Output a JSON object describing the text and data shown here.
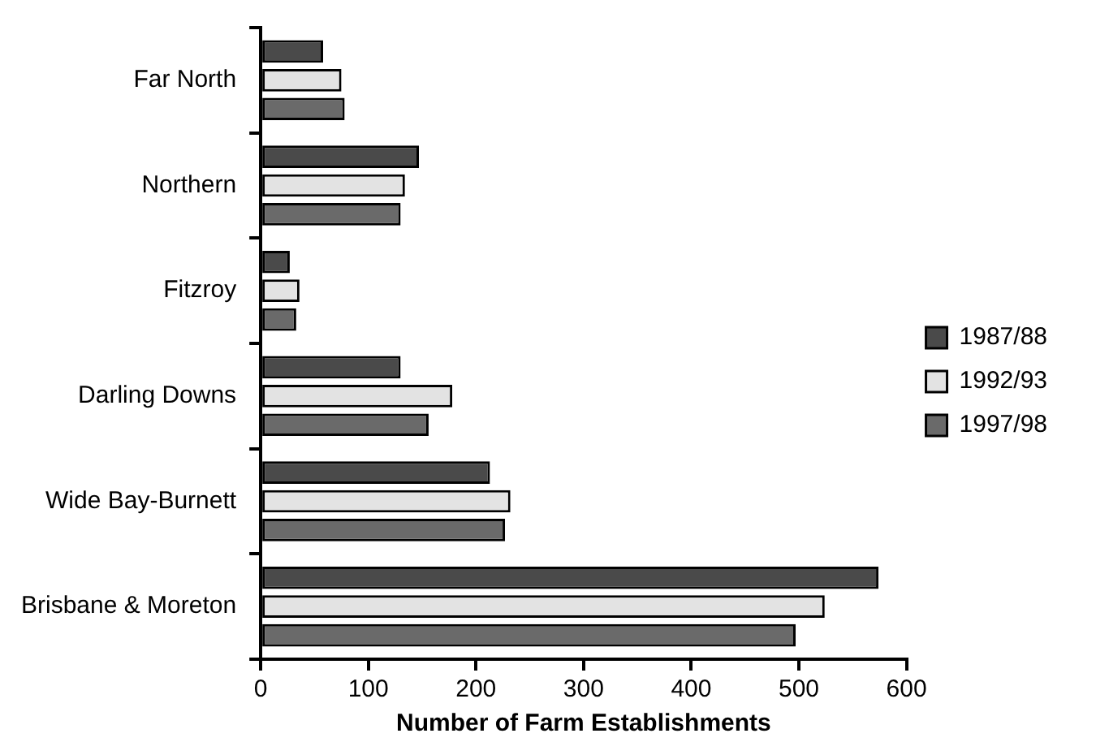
{
  "chart_data": {
    "type": "bar",
    "orientation": "horizontal",
    "xlabel": "Number of Farm Establishments",
    "categories": [
      "Far North",
      "Northern",
      "Fitzroy",
      "Darling Downs",
      "Wide Bay-Burnett",
      "Brisbane & Moreton"
    ],
    "series": [
      {
        "name": "1987/88",
        "color": "#4a4a4a",
        "values": [
          58,
          147,
          27,
          130,
          213,
          574
        ]
      },
      {
        "name": "1992/93",
        "color": "#e3e3e3",
        "values": [
          75,
          134,
          36,
          178,
          232,
          524
        ]
      },
      {
        "name": "1997/98",
        "color": "#6a6a6a",
        "values": [
          78,
          130,
          33,
          156,
          227,
          497
        ]
      }
    ],
    "xlim": [
      0,
      600
    ],
    "xticks": [
      0,
      100,
      200,
      300,
      400,
      500,
      600
    ],
    "grid": false,
    "legend": "right"
  }
}
